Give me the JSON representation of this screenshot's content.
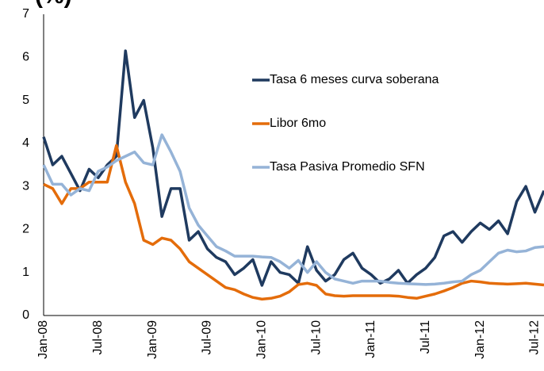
{
  "chart_data": {
    "type": "line",
    "title": "(%)",
    "categories": [
      "Jan-08",
      null,
      null,
      null,
      null,
      null,
      "Jul-08",
      null,
      null,
      null,
      null,
      null,
      "Jan-09",
      null,
      null,
      null,
      null,
      null,
      "Jul-09",
      null,
      null,
      null,
      null,
      null,
      "Jan-10",
      null,
      null,
      null,
      null,
      null,
      "Jul-10",
      null,
      null,
      null,
      null,
      null,
      "Jan-11",
      null,
      null,
      null,
      null,
      null,
      "Jul-11",
      null,
      null,
      null,
      null,
      null,
      "Jan-12",
      null,
      null,
      null,
      null,
      null,
      "Jul-12",
      null
    ],
    "series": [
      {
        "name": "Tasa 6 meses curva soberana",
        "color": "#1f3a5f",
        "values": [
          4.15,
          3.5,
          3.7,
          3.3,
          2.9,
          3.4,
          3.2,
          3.5,
          3.7,
          6.15,
          4.6,
          5.0,
          3.9,
          2.3,
          2.95,
          2.95,
          1.75,
          1.95,
          1.55,
          1.35,
          1.25,
          0.95,
          1.1,
          1.3,
          0.7,
          1.25,
          1.0,
          0.95,
          0.75,
          1.6,
          1.05,
          0.8,
          0.95,
          1.3,
          1.45,
          1.1,
          0.95,
          0.75,
          0.85,
          1.05,
          0.75,
          0.95,
          1.1,
          1.35,
          1.85,
          1.95,
          1.7,
          1.95,
          2.15,
          2.0,
          2.2,
          1.9,
          2.65,
          3.0,
          2.4,
          2.9
        ]
      },
      {
        "name": "Libor 6mo",
        "color": "#e46c0a",
        "values": [
          3.05,
          2.95,
          2.6,
          2.95,
          2.95,
          3.1,
          3.1,
          3.1,
          3.95,
          3.1,
          2.6,
          1.75,
          1.65,
          1.8,
          1.75,
          1.55,
          1.25,
          1.1,
          0.95,
          0.8,
          0.65,
          0.6,
          0.5,
          0.42,
          0.38,
          0.4,
          0.45,
          0.55,
          0.72,
          0.75,
          0.7,
          0.5,
          0.46,
          0.45,
          0.46,
          0.46,
          0.46,
          0.46,
          0.46,
          0.45,
          0.42,
          0.4,
          0.45,
          0.5,
          0.57,
          0.65,
          0.75,
          0.8,
          0.78,
          0.75,
          0.74,
          0.73,
          0.74,
          0.75,
          0.73,
          0.71
        ]
      },
      {
        "name": "Tasa Pasiva Promedio SFN",
        "color": "#95b3d7",
        "values": [
          3.5,
          3.05,
          3.05,
          2.8,
          2.95,
          2.9,
          3.35,
          3.45,
          3.6,
          3.7,
          3.8,
          3.55,
          3.5,
          4.2,
          3.8,
          3.35,
          2.5,
          2.1,
          1.85,
          1.6,
          1.5,
          1.38,
          1.38,
          1.38,
          1.36,
          1.35,
          1.25,
          1.1,
          1.28,
          1.0,
          1.25,
          1.0,
          0.85,
          0.8,
          0.75,
          0.8,
          0.8,
          0.8,
          0.77,
          0.75,
          0.74,
          0.73,
          0.72,
          0.73,
          0.75,
          0.78,
          0.8,
          0.95,
          1.05,
          1.25,
          1.45,
          1.52,
          1.48,
          1.5,
          1.58,
          1.6
        ]
      }
    ],
    "ylim": [
      0,
      7
    ],
    "yticks": [
      0,
      1,
      2,
      3,
      4,
      5,
      6,
      7
    ],
    "grid": false,
    "legend": "upper-right"
  }
}
